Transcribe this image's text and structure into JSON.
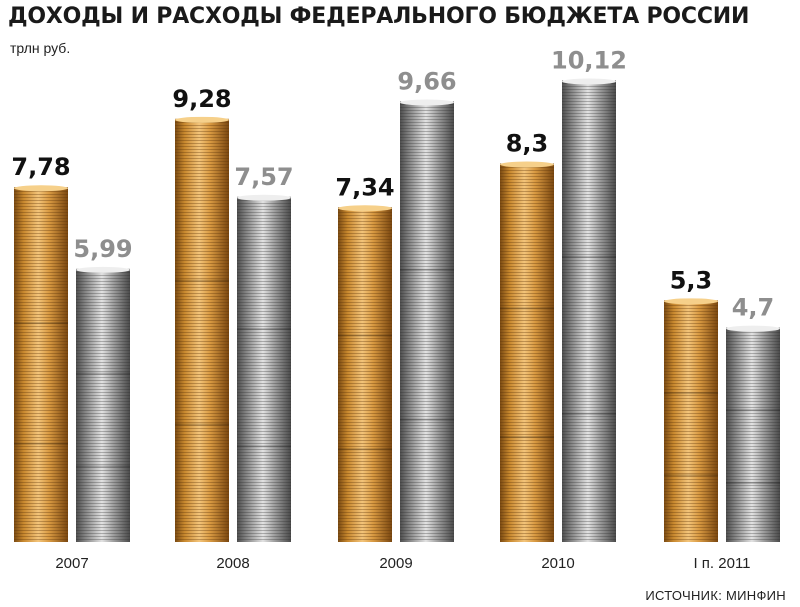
{
  "title": "ДОХОДЫ И РАСХОДЫ ФЕДЕРАЛЬНОГО БЮДЖЕТА РОССИИ",
  "unit": "трлн руб.",
  "source": "ИСТОЧНИК: МИНФИН",
  "chart_data": {
    "type": "bar",
    "title": "ДОХОДЫ И РАСХОДЫ ФЕДЕРАЛЬНОГО БЮДЖЕТА РОССИИ",
    "ylabel": "трлн руб.",
    "categories": [
      "2007",
      "2008",
      "2009",
      "2010",
      "I п. 2011"
    ],
    "series": [
      {
        "values": [
          7.78,
          9.28,
          7.34,
          8.3,
          5.3
        ],
        "labels": [
          "7,78",
          "9,28",
          "7,34",
          "8,3",
          "5,3"
        ],
        "color": "#c98a32"
      },
      {
        "values": [
          5.99,
          7.57,
          9.66,
          10.12,
          4.7
        ],
        "labels": [
          "5,99",
          "7,57",
          "9,66",
          "10,12",
          "4,7"
        ],
        "color": "#9a9a9a"
      }
    ],
    "ylim": [
      0,
      10.12
    ],
    "grid": false,
    "legend": "none"
  }
}
